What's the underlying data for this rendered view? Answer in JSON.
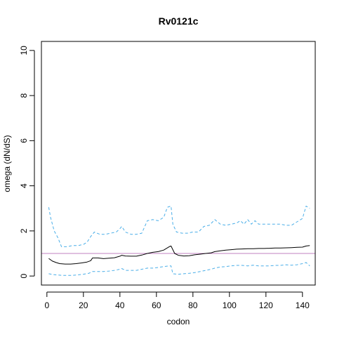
{
  "chart_data": {
    "type": "line",
    "title": "Rv0121c",
    "xlabel": "codon",
    "ylabel": "omega (dN/dS)",
    "xlim": [
      -3,
      147
    ],
    "ylim": [
      -0.4,
      10.4
    ],
    "x_ticks": [
      0,
      20,
      40,
      60,
      80,
      100,
      120,
      140
    ],
    "y_ticks": [
      0,
      2,
      4,
      6,
      8,
      10
    ],
    "grid": false,
    "legend": "none",
    "reference_line": {
      "y": 1,
      "color": "#c080c0"
    },
    "colors": {
      "estimate": "#000000",
      "interval": "#4aaee8"
    },
    "series": [
      {
        "style": "solid",
        "points": [
          [
            1,
            0.78
          ],
          [
            3,
            0.66
          ],
          [
            5,
            0.6
          ],
          [
            7,
            0.55
          ],
          [
            10,
            0.53
          ],
          [
            13,
            0.53
          ],
          [
            16,
            0.55
          ],
          [
            19,
            0.58
          ],
          [
            22,
            0.62
          ],
          [
            24,
            0.68
          ],
          [
            25,
            0.8
          ],
          [
            28,
            0.8
          ],
          [
            31,
            0.77
          ],
          [
            34,
            0.79
          ],
          [
            37,
            0.81
          ],
          [
            40,
            0.88
          ],
          [
            41,
            0.92
          ],
          [
            43,
            0.89
          ],
          [
            46,
            0.88
          ],
          [
            49,
            0.88
          ],
          [
            52,
            0.93
          ],
          [
            55,
            1.0
          ],
          [
            58,
            1.05
          ],
          [
            61,
            1.08
          ],
          [
            64,
            1.15
          ],
          [
            67,
            1.3
          ],
          [
            68,
            1.33
          ],
          [
            70,
            1.0
          ],
          [
            72,
            0.92
          ],
          [
            75,
            0.89
          ],
          [
            78,
            0.9
          ],
          [
            81,
            0.94
          ],
          [
            84,
            0.97
          ],
          [
            87,
            1.0
          ],
          [
            90,
            1.03
          ],
          [
            92,
            1.08
          ],
          [
            95,
            1.12
          ],
          [
            98,
            1.15
          ],
          [
            101,
            1.17
          ],
          [
            104,
            1.19
          ],
          [
            107,
            1.2
          ],
          [
            110,
            1.21
          ],
          [
            113,
            1.21
          ],
          [
            116,
            1.22
          ],
          [
            119,
            1.22
          ],
          [
            122,
            1.23
          ],
          [
            125,
            1.24
          ],
          [
            128,
            1.24
          ],
          [
            131,
            1.25
          ],
          [
            134,
            1.26
          ],
          [
            137,
            1.27
          ],
          [
            140,
            1.28
          ],
          [
            142,
            1.33
          ],
          [
            144,
            1.35
          ]
        ]
      },
      {
        "style": "dashed",
        "points": [
          [
            1,
            3.05
          ],
          [
            2,
            2.6
          ],
          [
            4,
            2.0
          ],
          [
            6,
            1.7
          ],
          [
            8,
            1.3
          ],
          [
            11,
            1.3
          ],
          [
            14,
            1.35
          ],
          [
            17,
            1.35
          ],
          [
            20,
            1.4
          ],
          [
            22,
            1.5
          ],
          [
            24,
            1.75
          ],
          [
            26,
            1.95
          ],
          [
            29,
            1.85
          ],
          [
            32,
            1.85
          ],
          [
            35,
            1.9
          ],
          [
            38,
            1.95
          ],
          [
            40,
            2.1
          ],
          [
            41,
            2.2
          ],
          [
            43,
            1.95
          ],
          [
            46,
            1.85
          ],
          [
            49,
            1.85
          ],
          [
            52,
            1.9
          ],
          [
            55,
            2.45
          ],
          [
            58,
            2.5
          ],
          [
            61,
            2.45
          ],
          [
            64,
            2.6
          ],
          [
            66,
            3.05
          ],
          [
            68,
            3.1
          ],
          [
            69,
            2.3
          ],
          [
            71,
            1.95
          ],
          [
            74,
            1.9
          ],
          [
            77,
            1.9
          ],
          [
            80,
            1.95
          ],
          [
            83,
            1.95
          ],
          [
            86,
            2.2
          ],
          [
            89,
            2.25
          ],
          [
            92,
            2.5
          ],
          [
            95,
            2.3
          ],
          [
            98,
            2.25
          ],
          [
            101,
            2.3
          ],
          [
            104,
            2.35
          ],
          [
            106,
            2.45
          ],
          [
            108,
            2.3
          ],
          [
            110,
            2.5
          ],
          [
            112,
            2.3
          ],
          [
            114,
            2.45
          ],
          [
            116,
            2.3
          ],
          [
            119,
            2.3
          ],
          [
            122,
            2.3
          ],
          [
            125,
            2.3
          ],
          [
            128,
            2.3
          ],
          [
            131,
            2.25
          ],
          [
            134,
            2.25
          ],
          [
            137,
            2.4
          ],
          [
            140,
            2.55
          ],
          [
            142,
            3.1
          ],
          [
            144,
            3.0
          ]
        ]
      },
      {
        "style": "dashed",
        "points": [
          [
            1,
            0.1
          ],
          [
            3,
            0.07
          ],
          [
            5,
            0.05
          ],
          [
            8,
            0.03
          ],
          [
            11,
            0.03
          ],
          [
            14,
            0.03
          ],
          [
            17,
            0.05
          ],
          [
            20,
            0.08
          ],
          [
            23,
            0.12
          ],
          [
            25,
            0.2
          ],
          [
            28,
            0.2
          ],
          [
            31,
            0.2
          ],
          [
            34,
            0.22
          ],
          [
            37,
            0.25
          ],
          [
            40,
            0.3
          ],
          [
            41,
            0.33
          ],
          [
            43,
            0.25
          ],
          [
            46,
            0.25
          ],
          [
            49,
            0.25
          ],
          [
            52,
            0.3
          ],
          [
            55,
            0.35
          ],
          [
            58,
            0.35
          ],
          [
            61,
            0.38
          ],
          [
            64,
            0.42
          ],
          [
            67,
            0.45
          ],
          [
            68,
            0.45
          ],
          [
            69,
            0.1
          ],
          [
            72,
            0.08
          ],
          [
            75,
            0.1
          ],
          [
            78,
            0.12
          ],
          [
            81,
            0.15
          ],
          [
            84,
            0.2
          ],
          [
            87,
            0.25
          ],
          [
            90,
            0.3
          ],
          [
            92,
            0.35
          ],
          [
            95,
            0.4
          ],
          [
            98,
            0.42
          ],
          [
            101,
            0.45
          ],
          [
            104,
            0.47
          ],
          [
            107,
            0.47
          ],
          [
            110,
            0.45
          ],
          [
            113,
            0.48
          ],
          [
            116,
            0.45
          ],
          [
            119,
            0.45
          ],
          [
            122,
            0.45
          ],
          [
            125,
            0.47
          ],
          [
            128,
            0.47
          ],
          [
            131,
            0.5
          ],
          [
            134,
            0.48
          ],
          [
            137,
            0.5
          ],
          [
            140,
            0.55
          ],
          [
            142,
            0.6
          ],
          [
            144,
            0.45
          ]
        ]
      }
    ]
  }
}
